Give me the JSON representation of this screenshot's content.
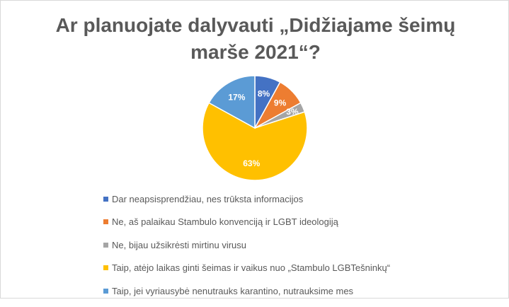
{
  "chart_data": {
    "type": "pie",
    "title": "Ar planuojate dalyvauti „Didžiajame šeimų maršе 2021“?",
    "slices": [
      {
        "label": "Dar neapsisprendžiau, nes trūksta informacijos",
        "value": 8,
        "value_label": "8%",
        "color": "#4472C4"
      },
      {
        "label": "Ne, aš palaikau Stambulo konvenciją ir LGBT ideologiją",
        "value": 9,
        "value_label": "9%",
        "color": "#ED7D31"
      },
      {
        "label": "Ne, bijau užsikrėsti mirtinu virusu",
        "value": 3,
        "value_label": "3%",
        "color": "#A5A5A5"
      },
      {
        "label": "Taip, atėjo laikas ginti šeimas ir vaikus nuo „Stambulo LGBTešninkų“",
        "value": 63,
        "value_label": "63%",
        "color": "#FFC000"
      },
      {
        "label": "Taip, jei vyriausybė nenutrauks karantino, nutrauksime mes",
        "value": 17,
        "value_label": "17%",
        "color": "#5B9BD5"
      }
    ],
    "legend_position": "bottom",
    "data_label_color": "#ffffff"
  }
}
